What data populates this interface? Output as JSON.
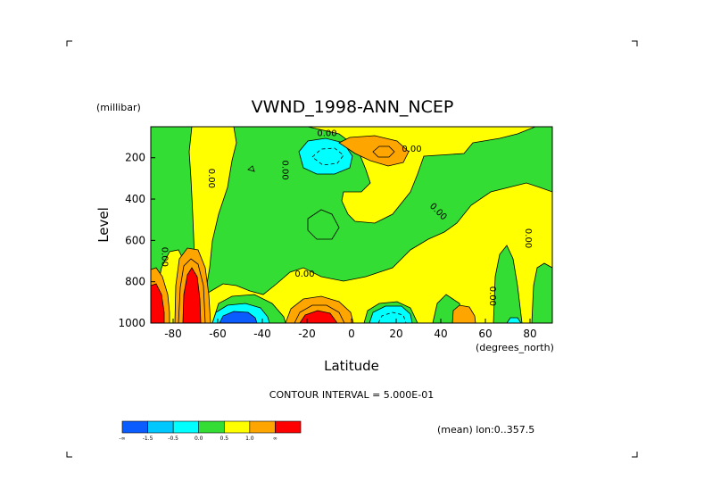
{
  "chart_data": {
    "type": "heatmap",
    "title": "VWND_1998-ANN_NCEP",
    "y_unit": "(millibar)",
    "x_unit": "(degrees_north)",
    "xlabel": "Latitude",
    "ylabel": "Level",
    "xlim": [
      -90,
      90
    ],
    "ylim": [
      1000,
      50
    ],
    "x_ticks": [
      -80,
      -60,
      -40,
      -20,
      0,
      20,
      40,
      60,
      80
    ],
    "x_tick_labels": [
      "-80",
      "-60",
      "-40",
      "-20",
      "0",
      "20",
      "40",
      "60",
      "80"
    ],
    "y_ticks": [
      200,
      400,
      600,
      800,
      1000
    ],
    "y_tick_labels": [
      "200",
      "400",
      "600",
      "800",
      "1000"
    ],
    "contour_interval_text": "CONTOUR INTERVAL = 5.000E-01",
    "mean_text": "(mean) lon:0..357.5",
    "contour_labels": [
      {
        "text": "0.00",
        "lat": -11,
        "lev": 95,
        "rotate": 0
      },
      {
        "text": "0.00",
        "lat": 27,
        "lev": 170,
        "rotate": 0
      },
      {
        "text": "0.00",
        "lat": -64,
        "lev": 300,
        "rotate": 90
      },
      {
        "text": "0.00",
        "lat": -31,
        "lev": 260,
        "rotate": 90
      },
      {
        "text": "0.00",
        "lat": 38,
        "lev": 470,
        "rotate": 45
      },
      {
        "text": "0.00",
        "lat": 78,
        "lev": 590,
        "rotate": 90
      },
      {
        "text": "0.00",
        "lat": -85,
        "lev": 680,
        "rotate": 90
      },
      {
        "text": "0.00",
        "lat": -21,
        "lev": 775,
        "rotate": 0
      },
      {
        "text": "0.00",
        "lat": 62,
        "lev": 870,
        "rotate": 90
      }
    ],
    "legend": {
      "colors": [
        "#0a5cff",
        "#00c8ff",
        "#00ffff",
        "#33dd33",
        "#ffff00",
        "#ffa500",
        "#ff0000"
      ],
      "labels": [
        "-∞",
        "-1.5",
        "-0.5",
        "0.0",
        "0.5",
        "1.0",
        "∞"
      ]
    },
    "fields": {
      "background": "#ffff00",
      "green": "#33dd33",
      "cyan": "#00ffff",
      "blue": "#0a5cff",
      "orange": "#ffa500",
      "red": "#ff0000"
    }
  }
}
